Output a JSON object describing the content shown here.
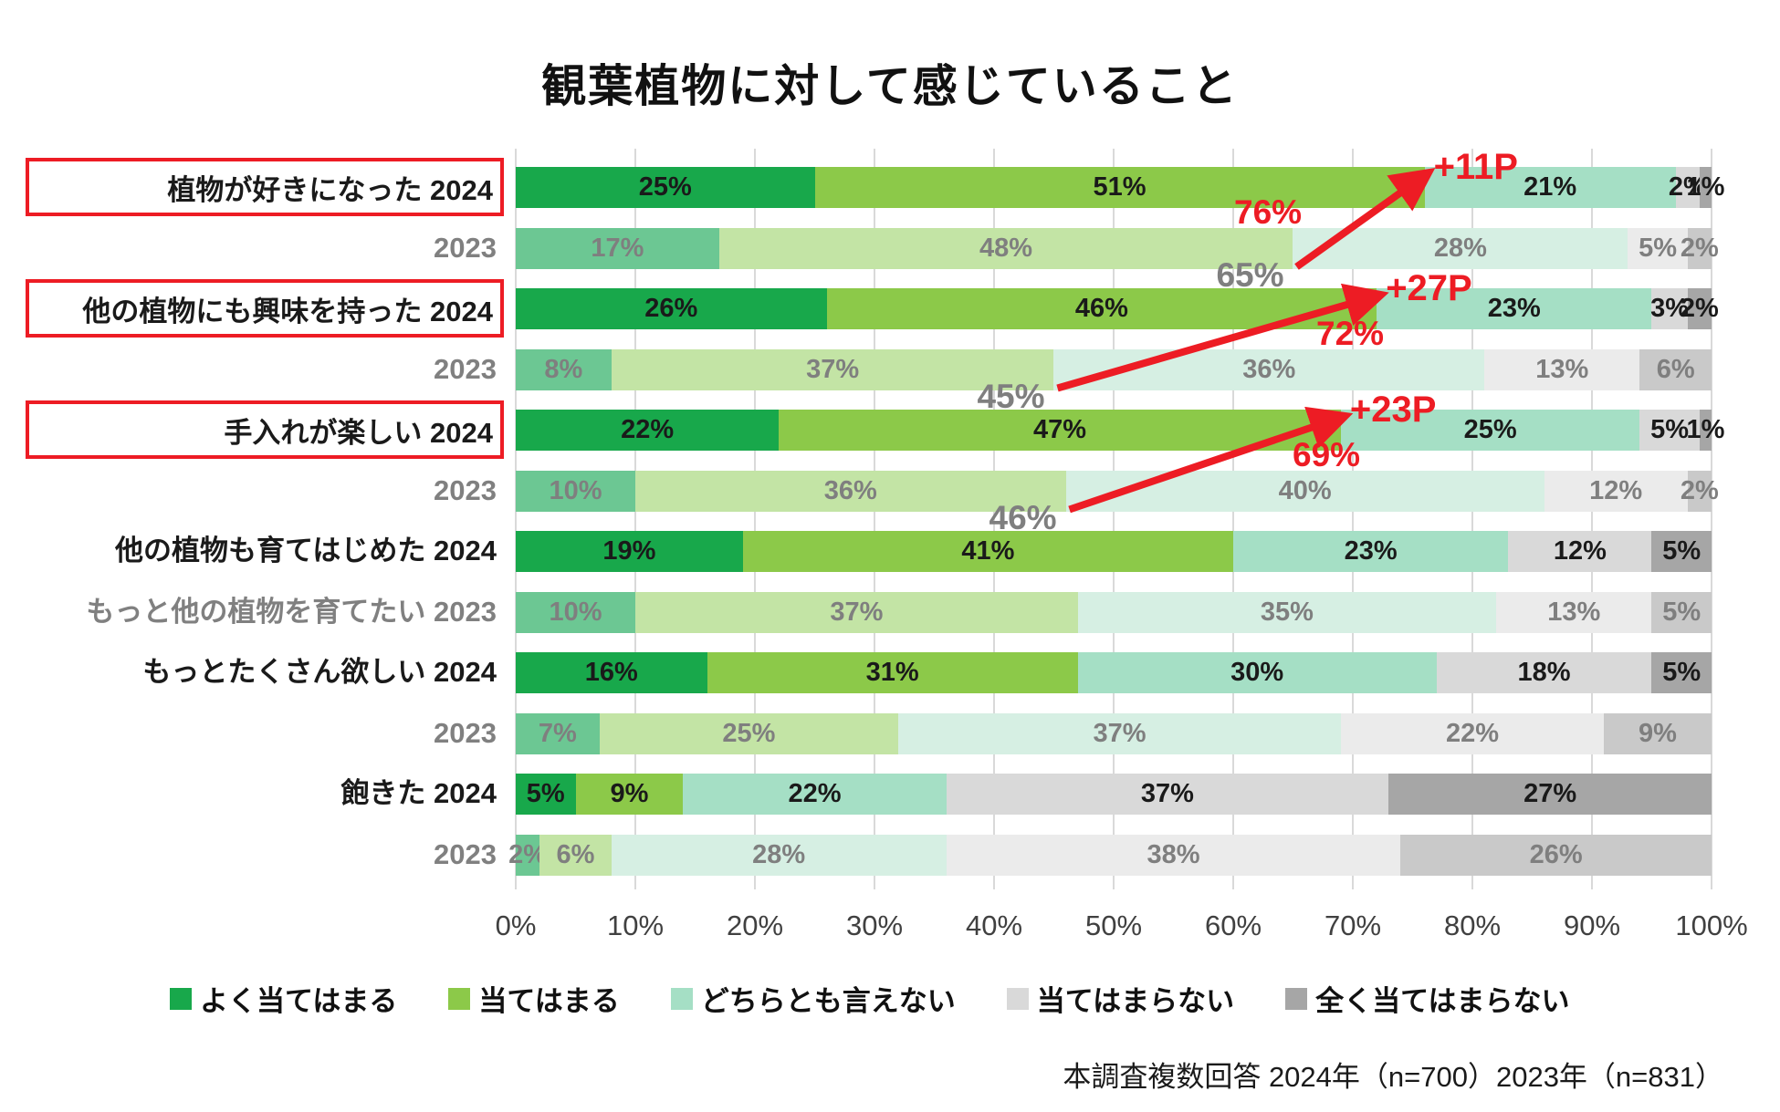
{
  "title": "観葉植物に対して感じていること",
  "footnote": "本調査複数回答 2024年（n=700）2023年（n=831）",
  "legend": {
    "items": [
      {
        "label": "よく当てはまる",
        "color": "#18a84b"
      },
      {
        "label": "当てはまる",
        "color": "#8cc949"
      },
      {
        "label": "どちらとも言えない",
        "color": "#a5dfc5"
      },
      {
        "label": "当てはまらない",
        "color": "#d9d9d9"
      },
      {
        "label": "全く当てはまらない",
        "color": "#a6a6a6"
      }
    ]
  },
  "colors": {
    "annotation_red": "#ed1c24",
    "box_red": "#ed1c24",
    "label_gray": "#7f7f7f",
    "grid": "#d9d9d9"
  },
  "chart_data": {
    "type": "bar",
    "orientation": "horizontal-stacked",
    "xlim": [
      0,
      100
    ],
    "grid": true,
    "x_ticks": [
      "0%",
      "10%",
      "20%",
      "30%",
      "40%",
      "50%",
      "60%",
      "70%",
      "80%",
      "90%",
      "100%"
    ],
    "series_labels": [
      "よく当てはまる",
      "当てはまる",
      "どちらとも言えない",
      "当てはまらない",
      "全く当てはまらない"
    ],
    "palette_2024": [
      "#18a84b",
      "#8cc949",
      "#a5dfc5",
      "#d9d9d9",
      "#a6a6a6"
    ],
    "palette_2023": [
      "#6cc793",
      "#c3e4a5",
      "#d6efe3",
      "#ebebeb",
      "#c9c9c9"
    ],
    "rows": [
      {
        "label": "植物が好きになった 2024",
        "year": "2024",
        "boxed": true,
        "values": [
          25,
          51,
          21,
          2,
          1
        ]
      },
      {
        "label": "2023",
        "year": "2023",
        "boxed": false,
        "values": [
          17,
          48,
          28,
          5,
          2
        ]
      },
      {
        "label": "他の植物にも興味を持った 2024",
        "year": "2024",
        "boxed": true,
        "values": [
          26,
          46,
          23,
          3,
          2
        ]
      },
      {
        "label": "2023",
        "year": "2023",
        "boxed": false,
        "values": [
          8,
          37,
          36,
          13,
          6
        ]
      },
      {
        "label": "手入れが楽しい 2024",
        "year": "2024",
        "boxed": true,
        "values": [
          22,
          47,
          25,
          5,
          1
        ]
      },
      {
        "label": "2023",
        "year": "2023",
        "boxed": false,
        "values": [
          10,
          36,
          40,
          12,
          2
        ]
      },
      {
        "label": "他の植物も育てはじめた 2024",
        "year": "2024",
        "boxed": false,
        "values": [
          19,
          41,
          23,
          12,
          5
        ]
      },
      {
        "label": "もっと他の植物を育てたい 2023",
        "year": "2023",
        "boxed": false,
        "values": [
          10,
          37,
          35,
          13,
          5
        ]
      },
      {
        "label": "もっとたくさん欲しい 2024",
        "year": "2024",
        "boxed": false,
        "values": [
          16,
          31,
          30,
          18,
          5
        ]
      },
      {
        "label": "2023",
        "year": "2023",
        "boxed": false,
        "values": [
          7,
          25,
          37,
          22,
          9
        ]
      },
      {
        "label": "飽きた 2024",
        "year": "2024",
        "boxed": false,
        "values": [
          5,
          9,
          22,
          37,
          27
        ]
      },
      {
        "label": "2023",
        "year": "2023",
        "boxed": false,
        "values": [
          2,
          6,
          28,
          38,
          26
        ]
      }
    ],
    "annotations": [
      {
        "row_2024": 0,
        "row_2023": 1,
        "total_2024": "76%",
        "total_2023": "65%",
        "delta": "+11P"
      },
      {
        "row_2024": 2,
        "row_2023": 3,
        "total_2024": "72%",
        "total_2023": "45%",
        "delta": "+27P"
      },
      {
        "row_2024": 4,
        "row_2023": 5,
        "total_2024": "69%",
        "total_2023": "46%",
        "delta": "+23P"
      }
    ]
  }
}
